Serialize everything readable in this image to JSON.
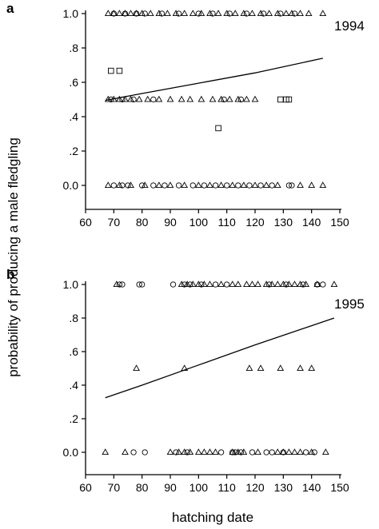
{
  "shared": {
    "ylabel": "probability of producing a male fledgling",
    "xlabel": "hatching date"
  },
  "chart_data": [
    {
      "type": "scatter",
      "panel": "a",
      "year": "1994",
      "xlim": [
        60,
        150
      ],
      "ylim": [
        0,
        1
      ],
      "x_ticks": [
        60,
        70,
        80,
        90,
        100,
        110,
        120,
        130,
        140,
        150
      ],
      "y_ticks": [
        0,
        0.2,
        0.4,
        0.6,
        0.8,
        1.0
      ],
      "y_tick_labels": [
        "0.0",
        ".2",
        ".4",
        ".6",
        ".8",
        "1.0"
      ],
      "grid": false,
      "series": [
        {
          "marker": "triangle",
          "points": [
            [
              68,
              1
            ],
            [
              70,
              1
            ],
            [
              72,
              1
            ],
            [
              74,
              1
            ],
            [
              76,
              1
            ],
            [
              78,
              1
            ],
            [
              80,
              1
            ],
            [
              83,
              1
            ],
            [
              86,
              1
            ],
            [
              89,
              1
            ],
            [
              92,
              1
            ],
            [
              95,
              1
            ],
            [
              98,
              1
            ],
            [
              101,
              1
            ],
            [
              104,
              1
            ],
            [
              107,
              1
            ],
            [
              110,
              1
            ],
            [
              113,
              1
            ],
            [
              116,
              1
            ],
            [
              119,
              1
            ],
            [
              122,
              1
            ],
            [
              125,
              1
            ],
            [
              128,
              1
            ],
            [
              131,
              1
            ],
            [
              133,
              1
            ],
            [
              136,
              1
            ],
            [
              139,
              1
            ],
            [
              144,
              1
            ],
            [
              68,
              0.5
            ],
            [
              70,
              0.5
            ],
            [
              72,
              0.5
            ],
            [
              74,
              0.5
            ],
            [
              76,
              0.5
            ],
            [
              79,
              0.5
            ],
            [
              82,
              0.5
            ],
            [
              86,
              0.5
            ],
            [
              90,
              0.5
            ],
            [
              94,
              0.5
            ],
            [
              97,
              0.5
            ],
            [
              101,
              0.5
            ],
            [
              105,
              0.5
            ],
            [
              108,
              0.5
            ],
            [
              111,
              0.5
            ],
            [
              114,
              0.5
            ],
            [
              117,
              0.5
            ],
            [
              120,
              0.5
            ],
            [
              68,
              0
            ],
            [
              72,
              0
            ],
            [
              76,
              0
            ],
            [
              81,
              0
            ],
            [
              86,
              0
            ],
            [
              90,
              0
            ],
            [
              95,
              0
            ],
            [
              100,
              0
            ],
            [
              104,
              0
            ],
            [
              108,
              0
            ],
            [
              112,
              0
            ],
            [
              116,
              0
            ],
            [
              120,
              0
            ],
            [
              124,
              0
            ],
            [
              128,
              0
            ],
            [
              136,
              0
            ],
            [
              140,
              0
            ],
            [
              144,
              0
            ]
          ]
        },
        {
          "marker": "circle",
          "points": [
            [
              70,
              1
            ],
            [
              74,
              1
            ],
            [
              78,
              1
            ],
            [
              81,
              1
            ],
            [
              87,
              1
            ],
            [
              93,
              1
            ],
            [
              100,
              1
            ],
            [
              105,
              1
            ],
            [
              111,
              1
            ],
            [
              117,
              1
            ],
            [
              123,
              1
            ],
            [
              129,
              1
            ],
            [
              134,
              1
            ],
            [
              69,
              0.5
            ],
            [
              73,
              0.5
            ],
            [
              77,
              0.5
            ],
            [
              84,
              0.5
            ],
            [
              109,
              0.5
            ],
            [
              115,
              0.5
            ],
            [
              70,
              0
            ],
            [
              73,
              0
            ],
            [
              75,
              0
            ],
            [
              80,
              0
            ],
            [
              84,
              0
            ],
            [
              88,
              0
            ],
            [
              93,
              0
            ],
            [
              98,
              0
            ],
            [
              102,
              0
            ],
            [
              106,
              0
            ],
            [
              110,
              0
            ],
            [
              114,
              0
            ],
            [
              118,
              0
            ],
            [
              122,
              0
            ],
            [
              126,
              0
            ],
            [
              132,
              0
            ],
            [
              133,
              0
            ]
          ]
        },
        {
          "marker": "square",
          "points": [
            [
              69,
              0.667
            ],
            [
              72,
              0.667
            ],
            [
              107,
              0.333
            ],
            [
              129,
              0.5
            ],
            [
              131,
              0.5
            ],
            [
              132,
              0.5
            ]
          ]
        }
      ],
      "fit_line": {
        "x": [
          67,
          80,
          100,
          120,
          144
        ],
        "y": [
          0.495,
          0.535,
          0.595,
          0.655,
          0.74
        ]
      }
    },
    {
      "type": "scatter",
      "panel": "b",
      "year": "1995",
      "xlim": [
        60,
        150
      ],
      "ylim": [
        0,
        1
      ],
      "x_ticks": [
        60,
        70,
        80,
        90,
        100,
        110,
        120,
        130,
        140,
        150
      ],
      "y_ticks": [
        0,
        0.2,
        0.4,
        0.6,
        0.8,
        1.0
      ],
      "y_tick_labels": [
        "0.0",
        ".2",
        ".4",
        ".6",
        ".8",
        "1.0"
      ],
      "grid": false,
      "series": [
        {
          "marker": "triangle",
          "points": [
            [
              71,
              1
            ],
            [
              94,
              1
            ],
            [
              96,
              1
            ],
            [
              98,
              1
            ],
            [
              100,
              1
            ],
            [
              102,
              1
            ],
            [
              104,
              1
            ],
            [
              108,
              1
            ],
            [
              112,
              1
            ],
            [
              114,
              1
            ],
            [
              117,
              1
            ],
            [
              119,
              1
            ],
            [
              121,
              1
            ],
            [
              124,
              1
            ],
            [
              126,
              1
            ],
            [
              128,
              1
            ],
            [
              130,
              1
            ],
            [
              132,
              1
            ],
            [
              134,
              1
            ],
            [
              136,
              1
            ],
            [
              138,
              1
            ],
            [
              142,
              1
            ],
            [
              148,
              1
            ],
            [
              78,
              0.5
            ],
            [
              95,
              0.5
            ],
            [
              118,
              0.5
            ],
            [
              122,
              0.5
            ],
            [
              129,
              0.5
            ],
            [
              136,
              0.5
            ],
            [
              140,
              0.5
            ],
            [
              67,
              0
            ],
            [
              74,
              0
            ],
            [
              90,
              0
            ],
            [
              93,
              0
            ],
            [
              95,
              0
            ],
            [
              97,
              0
            ],
            [
              100,
              0
            ],
            [
              102,
              0
            ],
            [
              104,
              0
            ],
            [
              106,
              0
            ],
            [
              112,
              0
            ],
            [
              114,
              0
            ],
            [
              116,
              0
            ],
            [
              121,
              0
            ],
            [
              128,
              0
            ],
            [
              130,
              0
            ],
            [
              132,
              0
            ],
            [
              134,
              0
            ],
            [
              136,
              0
            ],
            [
              140,
              0
            ],
            [
              145,
              0
            ]
          ]
        },
        {
          "marker": "circle",
          "points": [
            [
              72,
              1
            ],
            [
              73,
              1
            ],
            [
              79,
              1
            ],
            [
              80,
              1
            ],
            [
              91,
              1
            ],
            [
              95,
              1
            ],
            [
              97,
              1
            ],
            [
              101,
              1
            ],
            [
              106,
              1
            ],
            [
              110,
              1
            ],
            [
              125,
              1
            ],
            [
              131,
              1
            ],
            [
              137,
              1
            ],
            [
              142,
              1
            ],
            [
              144,
              1
            ],
            [
              77,
              0
            ],
            [
              81,
              0
            ],
            [
              92,
              0
            ],
            [
              96,
              0
            ],
            [
              108,
              0
            ],
            [
              112,
              0
            ],
            [
              113,
              0
            ],
            [
              115,
              0
            ],
            [
              119,
              0
            ],
            [
              124,
              0
            ],
            [
              126,
              0
            ],
            [
              130,
              0
            ],
            [
              138,
              0
            ],
            [
              141,
              0
            ]
          ]
        }
      ],
      "fit_line": {
        "x": [
          67,
          80,
          100,
          120,
          148
        ],
        "y": [
          0.325,
          0.4,
          0.52,
          0.64,
          0.8
        ]
      }
    }
  ]
}
